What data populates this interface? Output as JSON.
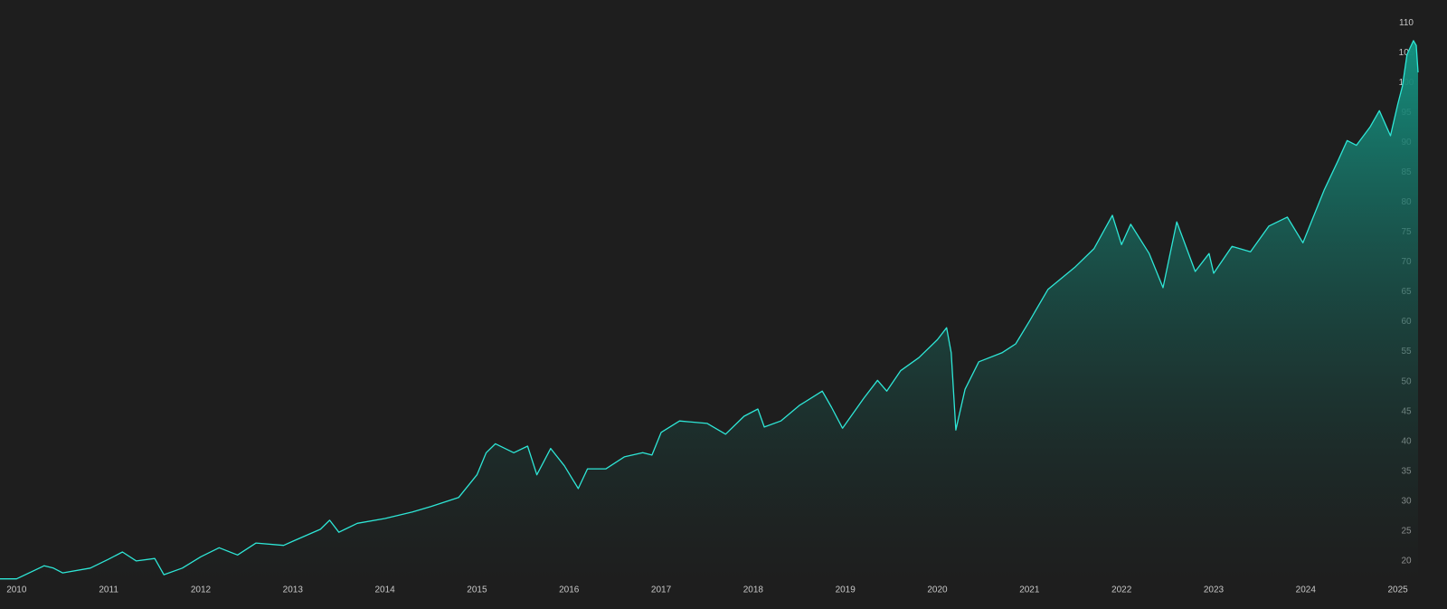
{
  "chart_data": {
    "type": "area",
    "color": "#2ee6d6",
    "fill_top": "#14907f",
    "fill_bottom": "#1e1e1e",
    "background": "#1e1e1e",
    "grid": false,
    "x": [
      2009.82,
      2010.0,
      2010.3,
      2010.4,
      2010.5,
      2010.8,
      2011.0,
      2011.15,
      2011.3,
      2011.5,
      2011.6,
      2011.8,
      2012.0,
      2012.2,
      2012.4,
      2012.6,
      2012.9,
      2013.0,
      2013.3,
      2013.4,
      2013.5,
      2013.7,
      2014.0,
      2014.3,
      2014.5,
      2014.8,
      2015.0,
      2015.1,
      2015.2,
      2015.4,
      2015.55,
      2015.65,
      2015.8,
      2015.95,
      2016.1,
      2016.2,
      2016.4,
      2016.6,
      2016.8,
      2016.9,
      2017.0,
      2017.2,
      2017.5,
      2017.7,
      2017.9,
      2018.05,
      2018.12,
      2018.3,
      2018.5,
      2018.75,
      2018.85,
      2018.97,
      2019.2,
      2019.35,
      2019.45,
      2019.6,
      2019.8,
      2020.0,
      2020.1,
      2020.15,
      2020.2,
      2020.3,
      2020.45,
      2020.7,
      2020.85,
      2021.0,
      2021.2,
      2021.5,
      2021.7,
      2021.9,
      2022.0,
      2022.1,
      2022.3,
      2022.45,
      2022.6,
      2022.8,
      2022.95,
      2023.0,
      2023.2,
      2023.4,
      2023.6,
      2023.8,
      2023.97,
      2024.1,
      2024.2,
      2024.35,
      2024.45,
      2024.55,
      2024.7,
      2024.8,
      2024.92,
      2025.0,
      2025.05,
      2025.1,
      2025.17,
      2025.2,
      2025.22
    ],
    "values": [
      17,
      17,
      19.2,
      18.8,
      18,
      18.8,
      20.3,
      21.5,
      20,
      20.4,
      17.7,
      18.8,
      20.7,
      22.2,
      21,
      23,
      22.6,
      23.3,
      25.3,
      26.8,
      24.8,
      26.3,
      27.1,
      28.2,
      29.1,
      30.6,
      34.4,
      38.1,
      39.6,
      38.1,
      39.2,
      34.4,
      38.8,
      35.9,
      32.1,
      35.4,
      35.4,
      37.4,
      38.1,
      37.7,
      41.5,
      43.4,
      43,
      41.2,
      44.2,
      45.4,
      42.4,
      43.4,
      46,
      48.4,
      45.7,
      42.2,
      47.2,
      50.2,
      48.4,
      51.8,
      54,
      57,
      59,
      54.8,
      41.9,
      48.7,
      53.3,
      54.8,
      56.3,
      60.1,
      65.4,
      69.2,
      72.2,
      77.8,
      72.9,
      76.3,
      71.4,
      65.7,
      76.7,
      68.4,
      71.4,
      68.1,
      72.6,
      71.7,
      76,
      77.5,
      73.2,
      78.2,
      82,
      86.9,
      90.3,
      89.5,
      92.6,
      95.3,
      91.1,
      96.4,
      99.4,
      104.7,
      107,
      106.2,
      101.7
    ],
    "xlim": [
      2009.82,
      2025.22
    ],
    "xticks": [
      2010,
      2011,
      2012,
      2013,
      2014,
      2015,
      2016,
      2017,
      2018,
      2019,
      2020,
      2021,
      2022,
      2023,
      2024,
      2025
    ],
    "ylim": [
      16.2,
      113.8
    ],
    "yticks": [
      20,
      25,
      30,
      35,
      40,
      45,
      50,
      55,
      60,
      65,
      70,
      75,
      80,
      85,
      90,
      95,
      100,
      105,
      110
    ]
  }
}
